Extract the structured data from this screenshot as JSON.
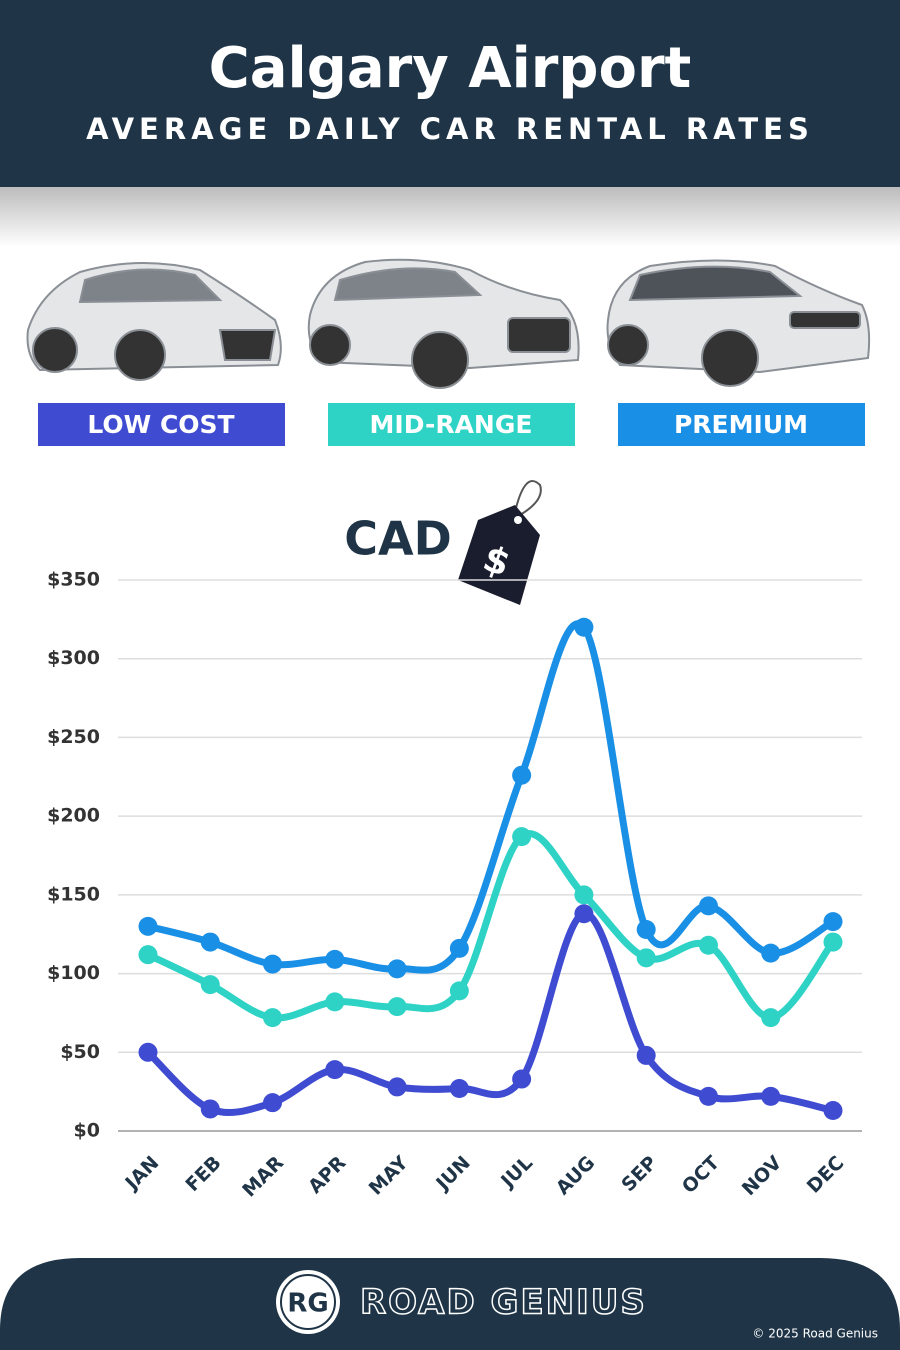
{
  "chart_data": {
    "type": "line",
    "title": "Calgary Airport",
    "subtitle": "AVERAGE DAILY CAR RENTAL RATES",
    "currency_label": "CAD",
    "tag_symbol": "$",
    "categories": [
      "JAN",
      "FEB",
      "MAR",
      "APR",
      "MAY",
      "JUN",
      "JUL",
      "AUG",
      "SEP",
      "OCT",
      "NOV",
      "DEC"
    ],
    "series": [
      {
        "name": "LOW COST",
        "color": "#3f4bd1",
        "values": [
          50,
          14,
          18,
          39,
          28,
          27,
          33,
          138,
          48,
          22,
          22,
          13
        ]
      },
      {
        "name": "MID-RANGE",
        "color": "#2ed3c6",
        "values": [
          112,
          93,
          72,
          82,
          79,
          89,
          187,
          150,
          110,
          118,
          72,
          120
        ]
      },
      {
        "name": "PREMIUM",
        "color": "#1a8fe6",
        "values": [
          130,
          120,
          106,
          109,
          103,
          116,
          226,
          320,
          128,
          143,
          113,
          133
        ]
      }
    ],
    "ylim": [
      0,
      350
    ],
    "yticks": [
      {
        "value": 0,
        "label": "$0"
      },
      {
        "value": 50,
        "label": "$50"
      },
      {
        "value": 100,
        "label": "$100"
      },
      {
        "value": 150,
        "label": "$150"
      },
      {
        "value": 200,
        "label": "$200"
      },
      {
        "value": 250,
        "label": "$250"
      },
      {
        "value": 300,
        "label": "$300"
      },
      {
        "value": 350,
        "label": "$350"
      }
    ],
    "grid": true,
    "smooth": true
  },
  "footer": {
    "logo": "RG",
    "brand": "ROAD GENIUS",
    "copyright": "© 2025 Road Genius"
  }
}
